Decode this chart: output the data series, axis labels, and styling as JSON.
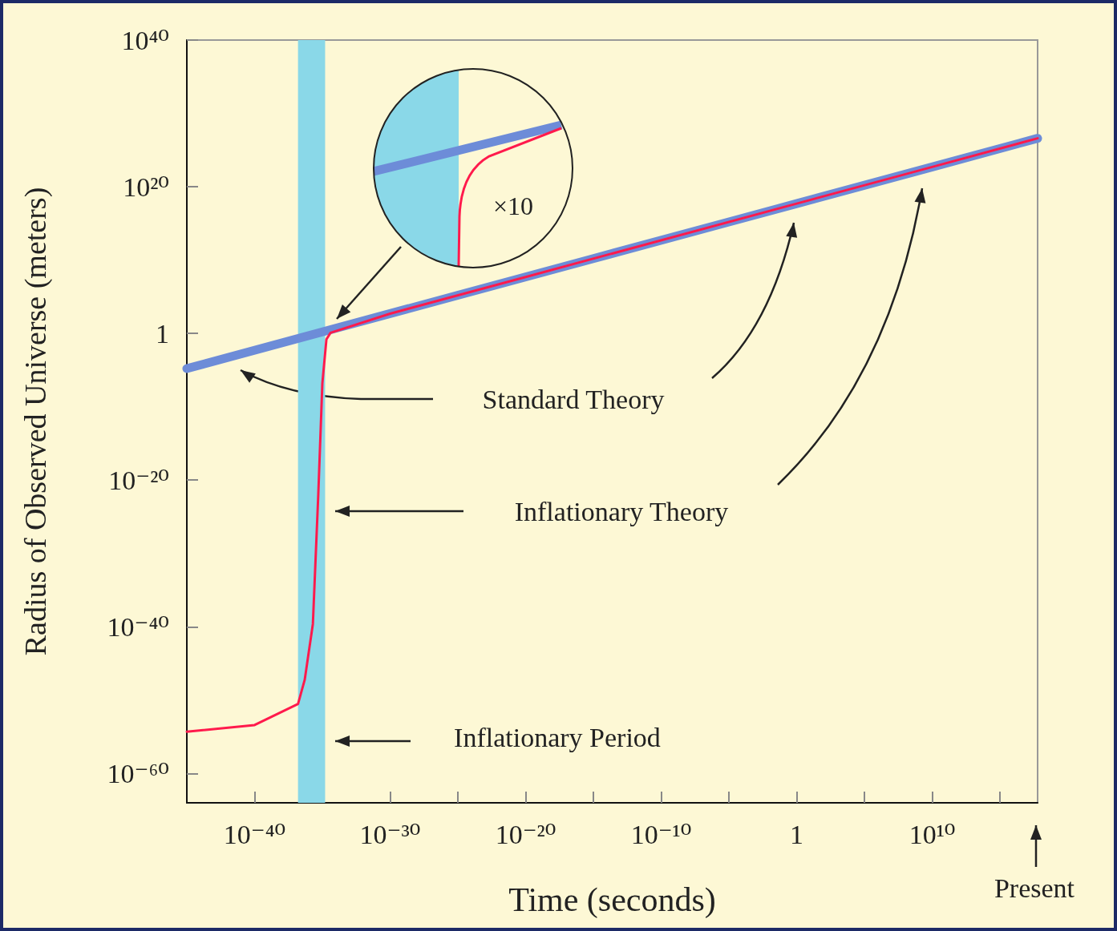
{
  "chart_data": {
    "type": "line",
    "xlabel": "Time (seconds)",
    "ylabel": "Radius of Observed Universe (meters)",
    "log": "xy",
    "grid": false,
    "marker": "none",
    "line_style": "solid",
    "xlim": [
      1e-45,
      6e+17
    ],
    "ylim": [
      1e-64,
      1e+40
    ],
    "xticks": [
      {
        "value": 1e-40,
        "label": "10⁻⁴⁰"
      },
      {
        "value": 1e-35,
        "label": null
      },
      {
        "value": 1e-30,
        "label": "10⁻³⁰"
      },
      {
        "value": 1e-25,
        "label": null
      },
      {
        "value": 1e-20,
        "label": "10⁻²⁰"
      },
      {
        "value": 1e-15,
        "label": null
      },
      {
        "value": 1e-10,
        "label": "10⁻¹⁰"
      },
      {
        "value": 1e-05,
        "label": null
      },
      1,
      {
        "value": 100000.0,
        "label": null
      },
      {
        "value": 10000000000.0,
        "label": "10¹⁰"
      },
      {
        "value": 1000000000000000.0,
        "label": null
      }
    ],
    "yticks": [
      {
        "value": 1e-60,
        "label": "10⁻⁶⁰"
      },
      {
        "value": 1e-40,
        "label": "10⁻⁴⁰"
      },
      {
        "value": 1e-20,
        "label": "10⁻²⁰"
      },
      1,
      {
        "value": 1e+20,
        "label": "10²⁰"
      },
      {
        "value": 1e+40,
        "label": "10⁴⁰"
      }
    ],
    "series": [
      {
        "color": "#6d8cd8",
        "x": [
          1e-45,
          1e-35,
          1e-25,
          1e-15,
          1e-05,
          1,
          10000000000.0,
          6e+17
        ],
        "values": [
          1.6e-05,
          1.6,
          160000.0,
          16000000000.0,
          1600000000000000.0,
          5e+17,
          5e+22,
          4e+26
        ]
      },
      {
        "color": "#ff1a4c",
        "x": [
          1e-45,
          1e-40,
          1.6e-37,
          5e-37,
          2e-36,
          5e-36,
          1e-35,
          2e-35,
          4e-35,
          1e-30,
          1e-20,
          1,
          10000000000.0,
          6e+17
        ],
        "values": [
          5e-55,
          4e-54,
          3e-51,
          6e-48,
          2.5e-40,
          1e-22,
          1.6e-07,
          0.16,
          1.2,
          500.0,
          50000000.0,
          5e+17,
          5e+22,
          4e+26
        ]
      }
    ],
    "bands": [
      {
        "axis": "x",
        "from": 1.6e-37,
        "to": 1.6e-35,
        "color": "#8ad8e8"
      }
    ],
    "annotations": [
      "Standard Theory",
      "Inflationary Theory",
      "Inflationary Period",
      "×10",
      "Present"
    ]
  }
}
